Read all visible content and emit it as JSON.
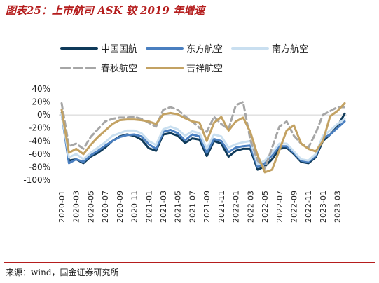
{
  "figure": {
    "title": "图表25：上市航司 ASK 较 2019 年增速",
    "source": "来源：wind，国金证券研究所",
    "colors": {
      "title": "#b51d1d",
      "rule": "#b51d1d"
    }
  },
  "chart_data": {
    "type": "line",
    "title": "",
    "xlabel": "",
    "ylabel": "",
    "ylim": [
      -100,
      40
    ],
    "yticks": [
      "40%",
      "20%",
      "0%",
      "-20%",
      "-40%",
      "-60%",
      "-80%",
      "-100%"
    ],
    "ytick_values": [
      40,
      20,
      0,
      -20,
      -40,
      -60,
      -80,
      -100
    ],
    "y_unit": "%",
    "grid": false,
    "legend_position": "top",
    "x": [
      "2020-01",
      "2020-02",
      "2020-03",
      "2020-04",
      "2020-05",
      "2020-06",
      "2020-07",
      "2020-08",
      "2020-09",
      "2020-10",
      "2020-11",
      "2020-12",
      "2021-01",
      "2021-02",
      "2021-03",
      "2021-04",
      "2021-05",
      "2021-06",
      "2021-07",
      "2021-08",
      "2021-09",
      "2021-10",
      "2021-11",
      "2021-12",
      "2022-01",
      "2022-02",
      "2022-03",
      "2022-04",
      "2022-05",
      "2022-06",
      "2022-07",
      "2022-08",
      "2022-09",
      "2022-10",
      "2022-11",
      "2022-12",
      "2023-01",
      "2023-02",
      "2023-03",
      "2023-04"
    ],
    "xticks": [
      "2020-01",
      "2020-03",
      "2020-05",
      "2020-07",
      "2020-09",
      "2020-11",
      "2021-01",
      "2021-03",
      "2021-05",
      "2021-07",
      "2021-09",
      "2021-11",
      "2022-01",
      "2022-03",
      "2022-05",
      "2022-07",
      "2022-09",
      "2022-11",
      "2023-01",
      "2023-03"
    ],
    "series": [
      {
        "name": "中国国航",
        "color": "#0f3a5a",
        "style": "solid",
        "values": [
          3,
          -70,
          -68,
          -74,
          -64,
          -58,
          -50,
          -40,
          -33,
          -30,
          -32,
          -38,
          -51,
          -55,
          -30,
          -28,
          -32,
          -43,
          -36,
          -38,
          -63,
          -40,
          -44,
          -64,
          -55,
          -52,
          -52,
          -84,
          -79,
          -68,
          -52,
          -50,
          -60,
          -72,
          -74,
          -65,
          -40,
          -30,
          -18,
          2
        ]
      },
      {
        "name": "东方航空",
        "color": "#4a7fc0",
        "style": "solid",
        "values": [
          2,
          -74,
          -68,
          -72,
          -62,
          -55,
          -47,
          -40,
          -34,
          -31,
          -30,
          -33,
          -45,
          -52,
          -26,
          -23,
          -28,
          -39,
          -30,
          -33,
          -58,
          -37,
          -40,
          -57,
          -50,
          -48,
          -47,
          -80,
          -74,
          -62,
          -48,
          -48,
          -58,
          -70,
          -72,
          -63,
          -36,
          -30,
          -20,
          -10
        ]
      },
      {
        "name": "南方航空",
        "color": "#c9dff0",
        "style": "solid",
        "values": [
          2,
          -65,
          -60,
          -68,
          -58,
          -50,
          -42,
          -32,
          -28,
          -24,
          -24,
          -28,
          -40,
          -46,
          -22,
          -18,
          -22,
          -32,
          -25,
          -28,
          -52,
          -30,
          -33,
          -50,
          -45,
          -42,
          -40,
          -76,
          -70,
          -58,
          -44,
          -44,
          -56,
          -68,
          -70,
          -60,
          -32,
          -24,
          -14,
          -6
        ]
      },
      {
        "name": "春秋航空",
        "color": "#a6a6a6",
        "style": "dashed",
        "values": [
          18,
          -48,
          -44,
          -52,
          -34,
          -22,
          -10,
          -6,
          -4,
          -4,
          -3,
          -6,
          -12,
          -18,
          8,
          12,
          8,
          -2,
          -10,
          -20,
          -26,
          -3,
          -14,
          -22,
          15,
          20,
          -38,
          -70,
          -82,
          -50,
          -18,
          -10,
          -32,
          -44,
          -50,
          -28,
          0,
          6,
          12,
          12
        ]
      },
      {
        "name": "吉祥航空",
        "color": "#c3a263",
        "style": "solid",
        "values": [
          8,
          -58,
          -52,
          -60,
          -46,
          -34,
          -24,
          -14,
          -8,
          -7,
          -7,
          -8,
          -10,
          -14,
          1,
          3,
          1,
          -5,
          -10,
          -12,
          -40,
          -12,
          -3,
          -24,
          -10,
          -4,
          -26,
          -62,
          -88,
          -84,
          -54,
          -24,
          -16,
          -44,
          -52,
          -56,
          -40,
          -2,
          6,
          18
        ]
      }
    ]
  }
}
